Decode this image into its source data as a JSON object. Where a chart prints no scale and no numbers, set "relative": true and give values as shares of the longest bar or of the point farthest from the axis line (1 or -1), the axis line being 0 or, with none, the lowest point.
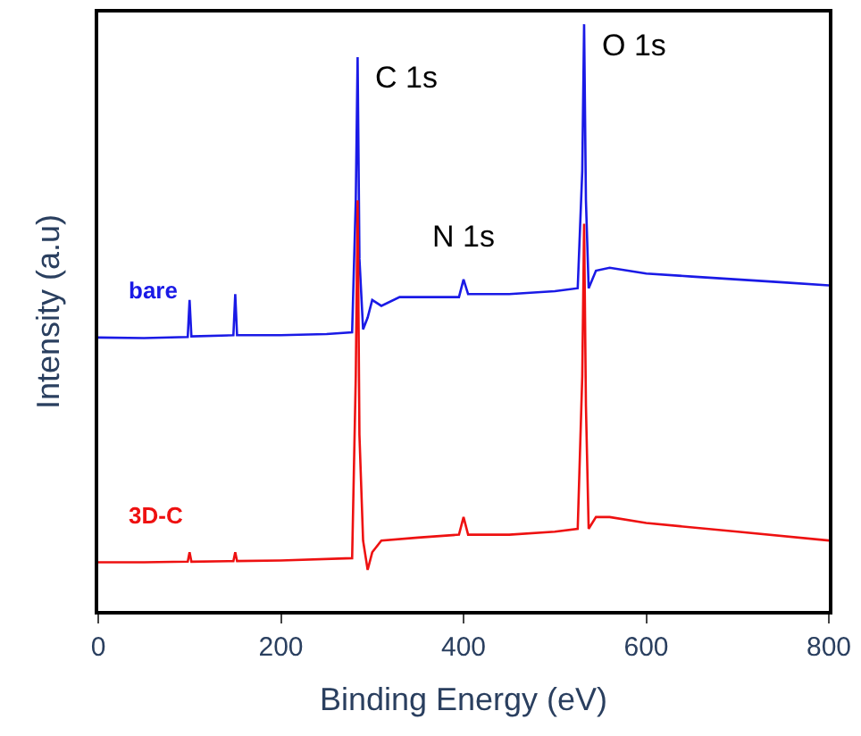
{
  "chart_data": {
    "type": "line",
    "relative": true,
    "xlabel": "Binding Energy (eV)",
    "ylabel": "Intensity (a.u)",
    "xlim": [
      0,
      800
    ],
    "xticks": [
      0,
      200,
      400,
      600,
      800
    ],
    "tick_labels": "x",
    "legend": false,
    "series": [
      {
        "name": "bare",
        "color": "#1a1ae6",
        "x": [
          0,
          50,
          98,
          100,
          102,
          148,
          150,
          152,
          200,
          250,
          278,
          282,
          284,
          286,
          290,
          295,
          300,
          310,
          330,
          360,
          395,
          400,
          405,
          450,
          500,
          525,
          530,
          532,
          534,
          537,
          545,
          560,
          600,
          650,
          700,
          750,
          800
        ],
        "values": [
          0.466,
          0.465,
          0.467,
          0.53,
          0.468,
          0.47,
          0.54,
          0.47,
          0.47,
          0.472,
          0.475,
          0.7,
          0.944,
          0.6,
          0.48,
          0.5,
          0.53,
          0.52,
          0.535,
          0.535,
          0.535,
          0.565,
          0.54,
          0.54,
          0.545,
          0.55,
          0.75,
          1.0,
          0.7,
          0.55,
          0.58,
          0.585,
          0.575,
          0.57,
          0.565,
          0.56,
          0.555
        ]
      },
      {
        "name": "3D-C",
        "color": "#ee1111",
        "x": [
          0,
          50,
          98,
          100,
          102,
          148,
          150,
          152,
          200,
          278,
          282,
          284,
          286,
          290,
          295,
          300,
          310,
          350,
          395,
          400,
          405,
          450,
          500,
          525,
          530,
          532,
          534,
          537,
          545,
          560,
          600,
          700,
          800
        ],
        "values": [
          0.083,
          0.083,
          0.084,
          0.1,
          0.084,
          0.085,
          0.1,
          0.085,
          0.086,
          0.09,
          0.4,
          0.7,
          0.3,
          0.12,
          0.07,
          0.1,
          0.12,
          0.125,
          0.13,
          0.16,
          0.13,
          0.13,
          0.135,
          0.14,
          0.4,
          0.66,
          0.35,
          0.14,
          0.16,
          0.16,
          0.15,
          0.135,
          0.12
        ]
      }
    ],
    "annotations": [
      {
        "text": "C 1s",
        "x": 284,
        "y": 0.944
      },
      {
        "text": "N 1s",
        "x": 400,
        "y": 0.565
      },
      {
        "text": "O 1s",
        "x": 532,
        "y": 1.0
      }
    ]
  }
}
